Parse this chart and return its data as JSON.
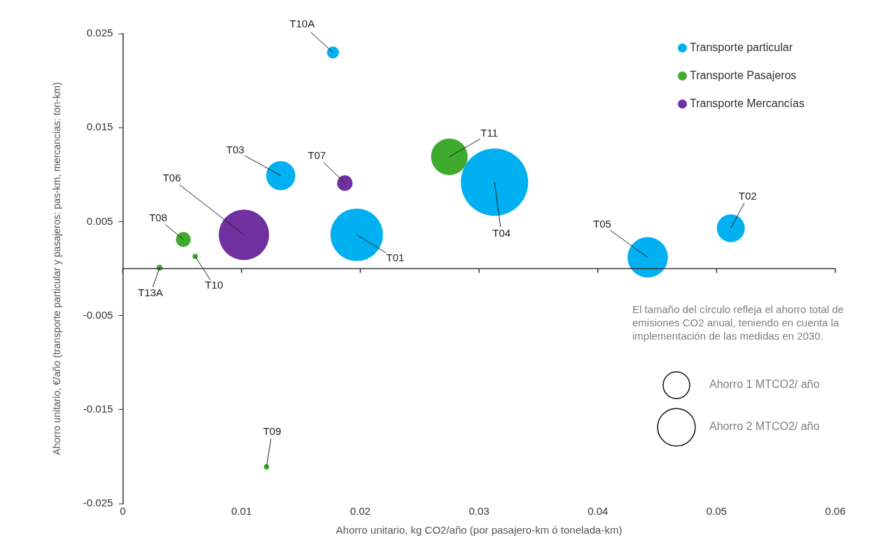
{
  "chart_data": {
    "type": "bubble",
    "xlabel": "Ahorro unitario, kg CO2/año (por pasajero-km ó tonelada-km)",
    "ylabel": "Ahorro unitario, €/año (transporte particular y pasajeros: pas-km, mercancías: ton-km)",
    "xlim": [
      0,
      0.06
    ],
    "xticks": [
      0,
      0.01,
      0.02,
      0.03,
      0.04,
      0.05,
      0.06
    ],
    "ylim": [
      -0.025,
      0.025
    ],
    "yticks": [
      -0.025,
      -0.015,
      -0.005,
      0.005,
      0.015,
      0.025
    ],
    "grid": false,
    "legend": "top right",
    "size_legend": [
      {
        "value": 1,
        "label": "Ahorro 1 MTCO2/ año"
      },
      {
        "value": 2,
        "label": "Ahorro 2 MTCO2/ año"
      }
    ],
    "series": [
      {
        "name": "Transporte particular",
        "color": "#00b0f0",
        "x": [
          0.0177,
          0.0133,
          0.0313,
          0.0197,
          0.0512,
          0.0442
        ],
        "values": [
          0.023,
          0.0099,
          0.0092,
          0.0036,
          0.0043,
          0.0012
        ],
        "sizes": [
          0.2,
          1.2,
          6.4,
          3.9,
          1.1,
          2.3
        ]
      },
      {
        "name": "Transporte Pasajeros",
        "color": "#3faa2e",
        "x": [
          0.0275,
          0.0051,
          0.0031,
          0.0061,
          0.0121
        ],
        "values": [
          0.0119,
          0.0031,
          0.0001,
          0.0013,
          -0.0211
        ],
        "sizes": [
          1.9,
          0.31,
          0.05,
          0.04,
          0.04
        ]
      },
      {
        "name": "Transporte Mercancías",
        "color": "#7030a0",
        "x": [
          0.0187,
          0.0102
        ],
        "values": [
          0.0091,
          0.0036
        ],
        "sizes": [
          0.34,
          3.6
        ]
      }
    ],
    "annotations": [
      {
        "text": "T10A",
        "x": 0.0177,
        "y": 0.023
      },
      {
        "text": "T03",
        "x": 0.0133,
        "y": 0.0099
      },
      {
        "text": "T07",
        "x": 0.0187,
        "y": 0.0091
      },
      {
        "text": "T11",
        "x": 0.0275,
        "y": 0.0119
      },
      {
        "text": "T04",
        "x": 0.0313,
        "y": 0.0092
      },
      {
        "text": "T06",
        "x": 0.0102,
        "y": 0.0036
      },
      {
        "text": "T08",
        "x": 0.0051,
        "y": 0.0031
      },
      {
        "text": "T01",
        "x": 0.0197,
        "y": 0.0036
      },
      {
        "text": "T02",
        "x": 0.0512,
        "y": 0.0043
      },
      {
        "text": "T05",
        "x": 0.0442,
        "y": 0.0012
      },
      {
        "text": "T13A",
        "x": 0.0031,
        "y": 0.0001
      },
      {
        "text": "T10",
        "x": 0.0061,
        "y": 0.0013
      },
      {
        "text": "T09",
        "x": 0.0121,
        "y": -0.0211
      },
      "El tamaño del círculo refleja el ahorro total de emisiones CO2 anual, teniendo en cuenta la implementación de las medidas en 2030."
    ]
  }
}
